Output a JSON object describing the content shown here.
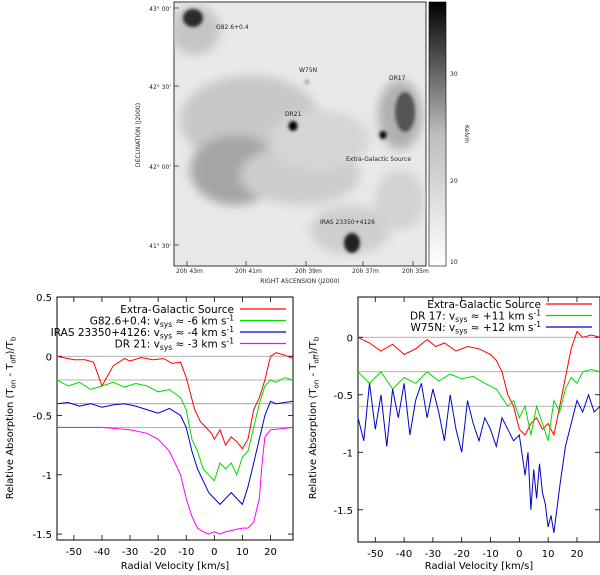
{
  "chart_data": [
    {
      "type": "heatmap",
      "title": "",
      "xlabel": "RIGHT ASCENSION (J2000)",
      "ylabel": "DECLINATION (J2000)",
      "x_ticks": [
        "20h 43m",
        "20h 41m",
        "20h 39m",
        "20h 37m",
        "20h 35m"
      ],
      "y_ticks": [
        "41° 30'",
        "42° 00'",
        "42° 30'",
        "43° 00'"
      ],
      "colorbar": {
        "label": "Kelvin",
        "ticks": [
          "10",
          "20",
          "30"
        ]
      },
      "sources": [
        {
          "name": "G82.6+0.4"
        },
        {
          "name": "W75N"
        },
        {
          "name": "DR17"
        },
        {
          "name": "DR21"
        },
        {
          "name": "Extra-Galactic Source"
        },
        {
          "name": "IRAS 23350+4126"
        }
      ]
    },
    {
      "type": "line",
      "xlabel": "Radial Velocity [km/s]",
      "ylabel": "Relative Absorption (T_on - T_off)/T_b",
      "xlim": [
        -56,
        28
      ],
      "ylim": [
        -1.55,
        0.5
      ],
      "x_ticks": [
        "-50",
        "-40",
        "-30",
        "-20",
        "-10",
        "0",
        "10",
        "20"
      ],
      "y_ticks": [
        "0.5",
        "0",
        "-0.5",
        "-1",
        "-1.5"
      ],
      "baselines": [
        0,
        -0.2,
        -0.4,
        -0.6
      ],
      "series": [
        {
          "name": "Extra-Galactic Source",
          "legend_parts": [
            "Extra-Galactic Source"
          ],
          "color": "#ff0000",
          "offset": 0,
          "x": [
            -56,
            -50,
            -46,
            -43,
            -40,
            -36,
            -32,
            -30,
            -26,
            -22,
            -18,
            -15,
            -12,
            -10,
            -7,
            -5,
            -3,
            -1,
            0,
            2,
            4,
            6,
            8,
            10,
            12,
            14,
            16,
            18,
            20,
            22,
            25,
            28
          ],
          "y": [
            0,
            -0.03,
            -0.03,
            -0.05,
            -0.25,
            -0.08,
            -0.02,
            -0.04,
            -0.01,
            -0.03,
            -0.02,
            -0.06,
            -0.05,
            -0.18,
            -0.45,
            -0.55,
            -0.6,
            -0.65,
            -0.7,
            -0.62,
            -0.75,
            -0.68,
            -0.72,
            -0.78,
            -0.7,
            -0.45,
            -0.35,
            -0.2,
            0,
            0.03,
            0.01,
            -0.02
          ]
        },
        {
          "name": "G82.6+0.4",
          "legend_parts": [
            "G82.6+0.4: v",
            "sys",
            " ≈ -6 km s",
            "-1"
          ],
          "color": "#00dd00",
          "offset": -0.2,
          "x": [
            -56,
            -52,
            -48,
            -44,
            -40,
            -36,
            -32,
            -28,
            -24,
            -20,
            -16,
            -12,
            -10,
            -8,
            -6,
            -4,
            -2,
            0,
            2,
            4,
            6,
            8,
            10,
            12,
            14,
            16,
            18,
            20,
            22,
            25,
            28
          ],
          "y": [
            0,
            -0.05,
            -0.02,
            -0.08,
            -0.05,
            -0.02,
            -0.06,
            -0.03,
            -0.05,
            -0.1,
            -0.08,
            -0.15,
            -0.25,
            -0.5,
            -0.6,
            -0.75,
            -0.8,
            -0.85,
            -0.7,
            -0.75,
            -0.7,
            -0.8,
            -0.65,
            -0.6,
            -0.4,
            -0.2,
            -0.05,
            0,
            -0.02,
            0.02,
            0
          ]
        },
        {
          "name": "IRAS 23350+4126",
          "legend_parts": [
            "IRAS 23350+4126: v",
            "sys",
            " ≈ -4 km s",
            "-1"
          ],
          "color": "#0000cc",
          "offset": -0.4,
          "x": [
            -56,
            -52,
            -48,
            -44,
            -40,
            -36,
            -32,
            -28,
            -24,
            -20,
            -16,
            -12,
            -10,
            -8,
            -6,
            -4,
            -2,
            0,
            2,
            4,
            6,
            8,
            10,
            12,
            14,
            16,
            18,
            20,
            22,
            25,
            28
          ],
          "y": [
            0,
            0.01,
            -0.02,
            0,
            -0.03,
            -0.01,
            0,
            -0.02,
            -0.05,
            -0.08,
            -0.04,
            -0.1,
            -0.2,
            -0.4,
            -0.55,
            -0.65,
            -0.75,
            -0.8,
            -0.85,
            -0.8,
            -0.75,
            -0.8,
            -0.85,
            -0.7,
            -0.5,
            -0.3,
            -0.1,
            0.02,
            0,
            0.01,
            0.02
          ]
        },
        {
          "name": "DR 21",
          "legend_parts": [
            "DR 21: v",
            "sys",
            " ≈ -3 km s",
            "-1"
          ],
          "color": "#ff00ff",
          "offset": -0.6,
          "x": [
            -56,
            -50,
            -40,
            -30,
            -24,
            -20,
            -16,
            -12,
            -10,
            -8,
            -6,
            -4,
            -2,
            0,
            2,
            4,
            6,
            8,
            10,
            12,
            14,
            16,
            17,
            18,
            20,
            24,
            28
          ],
          "y": [
            0,
            0,
            0,
            -0.02,
            -0.05,
            -0.1,
            -0.2,
            -0.4,
            -0.6,
            -0.75,
            -0.85,
            -0.88,
            -0.9,
            -0.88,
            -0.9,
            -0.88,
            -0.87,
            -0.86,
            -0.85,
            -0.85,
            -0.8,
            -0.6,
            -0.3,
            -0.08,
            -0.02,
            -0.01,
            0
          ]
        }
      ]
    },
    {
      "type": "line",
      "xlabel": "Radial Velocity [km/s]",
      "ylabel": "Relative Absorption (T_on - T_off)/T_b",
      "xlim": [
        -56,
        28
      ],
      "ylim": [
        -1.78,
        0.35
      ],
      "x_ticks": [
        "-50",
        "-40",
        "-30",
        "-20",
        "-10",
        "0",
        "10",
        "20"
      ],
      "y_ticks": [
        "0",
        "-0.5",
        "-1",
        "-1.5"
      ],
      "baselines": [
        0,
        -0.3,
        -0.6
      ],
      "series": [
        {
          "name": "Extra-Galactic Source",
          "legend_parts": [
            "Extra-Galactic Source"
          ],
          "color": "#ff0000",
          "offset": 0,
          "x": [
            -56,
            -52,
            -48,
            -44,
            -40,
            -36,
            -32,
            -29,
            -26,
            -22,
            -18,
            -14,
            -10,
            -8,
            -6,
            -4,
            -2,
            0,
            2,
            4,
            6,
            8,
            10,
            12,
            14,
            16,
            18,
            20,
            22,
            25,
            28
          ],
          "y": [
            0,
            -0.05,
            -0.12,
            -0.06,
            -0.15,
            -0.1,
            -0.02,
            -0.08,
            -0.05,
            -0.12,
            -0.08,
            -0.1,
            -0.15,
            -0.2,
            -0.3,
            -0.5,
            -0.6,
            -0.8,
            -0.85,
            -0.75,
            -0.7,
            -0.8,
            -0.75,
            -0.85,
            -0.6,
            -0.35,
            -0.1,
            0.05,
            0,
            0.02,
            0
          ]
        },
        {
          "name": "DR 17",
          "legend_parts": [
            "DR 17: v",
            "sys",
            " ≈ +11 km s",
            "-1"
          ],
          "color": "#00dd00",
          "offset": -0.3,
          "x": [
            -56,
            -52,
            -48,
            -44,
            -40,
            -36,
            -32,
            -28,
            -24,
            -20,
            -16,
            -12,
            -8,
            -4,
            -2,
            0,
            2,
            4,
            6,
            8,
            10,
            12,
            14,
            16,
            18,
            20,
            22,
            25,
            28
          ],
          "y": [
            0,
            -0.1,
            0,
            -0.15,
            -0.05,
            -0.1,
            0,
            -0.08,
            -0.02,
            -0.06,
            -0.04,
            -0.1,
            -0.15,
            -0.3,
            -0.25,
            -0.4,
            -0.3,
            -0.55,
            -0.3,
            -0.45,
            -0.6,
            -0.25,
            -0.35,
            -0.15,
            -0.05,
            -0.1,
            0,
            0.02,
            0
          ]
        },
        {
          "name": "W75N",
          "legend_parts": [
            "W75N: v",
            "sys",
            " ≈ +12 km s",
            "-1"
          ],
          "color": "#0000cc",
          "offset": -0.6,
          "x": [
            -56,
            -54,
            -52,
            -50,
            -48,
            -46,
            -44,
            -42,
            -40,
            -38,
            -36,
            -34,
            -32,
            -30,
            -28,
            -26,
            -24,
            -22,
            -20,
            -18,
            -16,
            -14,
            -12,
            -10,
            -8,
            -6,
            -4,
            -2,
            0,
            2,
            3,
            4,
            5,
            6,
            7,
            8,
            9,
            10,
            11,
            12,
            13,
            14,
            16,
            18,
            20,
            22,
            24,
            26,
            28
          ],
          "y": [
            -0.1,
            -0.3,
            0.2,
            -0.2,
            0.1,
            -0.35,
            0.15,
            -0.1,
            0.2,
            -0.25,
            0.05,
            0.2,
            -0.1,
            0.15,
            -0.05,
            -0.3,
            0.1,
            -0.2,
            -0.4,
            0.05,
            -0.15,
            -0.3,
            -0.1,
            -0.2,
            -0.35,
            -0.1,
            -0.2,
            -0.3,
            -0.25,
            -0.6,
            -0.4,
            -0.9,
            -0.55,
            -0.8,
            -0.5,
            -0.75,
            -0.85,
            -1.05,
            -0.95,
            -1.1,
            -0.9,
            -0.7,
            -0.35,
            -0.15,
            0.05,
            -0.05,
            0.1,
            -0.05,
            0
          ]
        }
      ]
    }
  ]
}
